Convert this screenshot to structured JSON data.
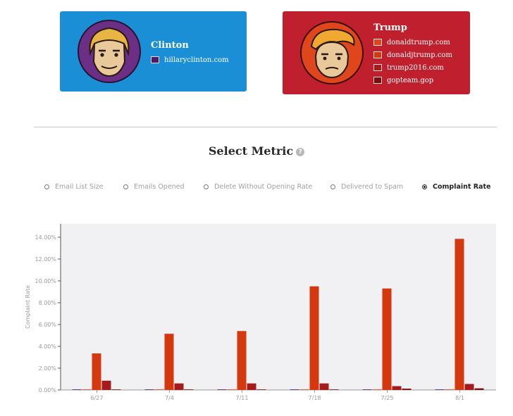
{
  "candidates": [
    {
      "name": "Clinton",
      "color": "#1b8fd6",
      "domains": [
        {
          "name": "hillaryclinton.com",
          "color": "#4b1a6e"
        }
      ]
    },
    {
      "name": "Trump",
      "color": "#c0202e",
      "domains": [
        {
          "name": "donaldtrump.com",
          "color": "#e0461c"
        },
        {
          "name": "donaldjtrump.com",
          "color": "#d4380f"
        },
        {
          "name": "trump2016.com",
          "color": "#a51b1b"
        },
        {
          "name": "gopteam.gop",
          "color": "#7a0e0e"
        }
      ]
    }
  ],
  "metric_selector": {
    "title": "Select Metric",
    "help_icon": "question-circle-icon",
    "options": [
      {
        "label": "Email List Size",
        "selected": false
      },
      {
        "label": "Emails Opened",
        "selected": false
      },
      {
        "label": "Delete Without Opening Rate",
        "selected": false
      },
      {
        "label": "Delivered to Spam",
        "selected": false
      },
      {
        "label": "Complaint Rate",
        "selected": true
      }
    ]
  },
  "chart_data": {
    "type": "bar",
    "title": "",
    "xlabel": "",
    "ylabel": "Complaint Rate",
    "categories": [
      "6/27",
      "7/4",
      "7/11",
      "7/18",
      "7/25",
      "8/1"
    ],
    "yticks": [
      "0.00%",
      "2.00%",
      "4.00%",
      "6.00%",
      "8.00%",
      "10.00%",
      "12.00%",
      "14.00%"
    ],
    "ylim": [
      0,
      14
    ],
    "grid": false,
    "background": "#f1f1f3",
    "series": [
      {
        "name": "hillaryclinton.com",
        "color": "#4b1a6e",
        "values": [
          0.0,
          0.0,
          0.0,
          0.0,
          0.0,
          0.0
        ]
      },
      {
        "name": "donaldtrump.com",
        "color": "#e0461c",
        "values": [
          0.0,
          0.0,
          0.0,
          0.0,
          0.0,
          0.0
        ]
      },
      {
        "name": "donaldjtrump.com",
        "color": "#d4380f",
        "values": [
          3.35,
          5.15,
          5.4,
          9.5,
          9.3,
          13.85
        ]
      },
      {
        "name": "trump2016.com",
        "color": "#a51b1b",
        "values": [
          0.85,
          0.6,
          0.6,
          0.6,
          0.35,
          0.55
        ]
      },
      {
        "name": "gopteam.gop",
        "color": "#7a0e0e",
        "values": [
          0.0,
          0.0,
          0.0,
          0.0,
          0.12,
          0.15
        ]
      }
    ]
  }
}
